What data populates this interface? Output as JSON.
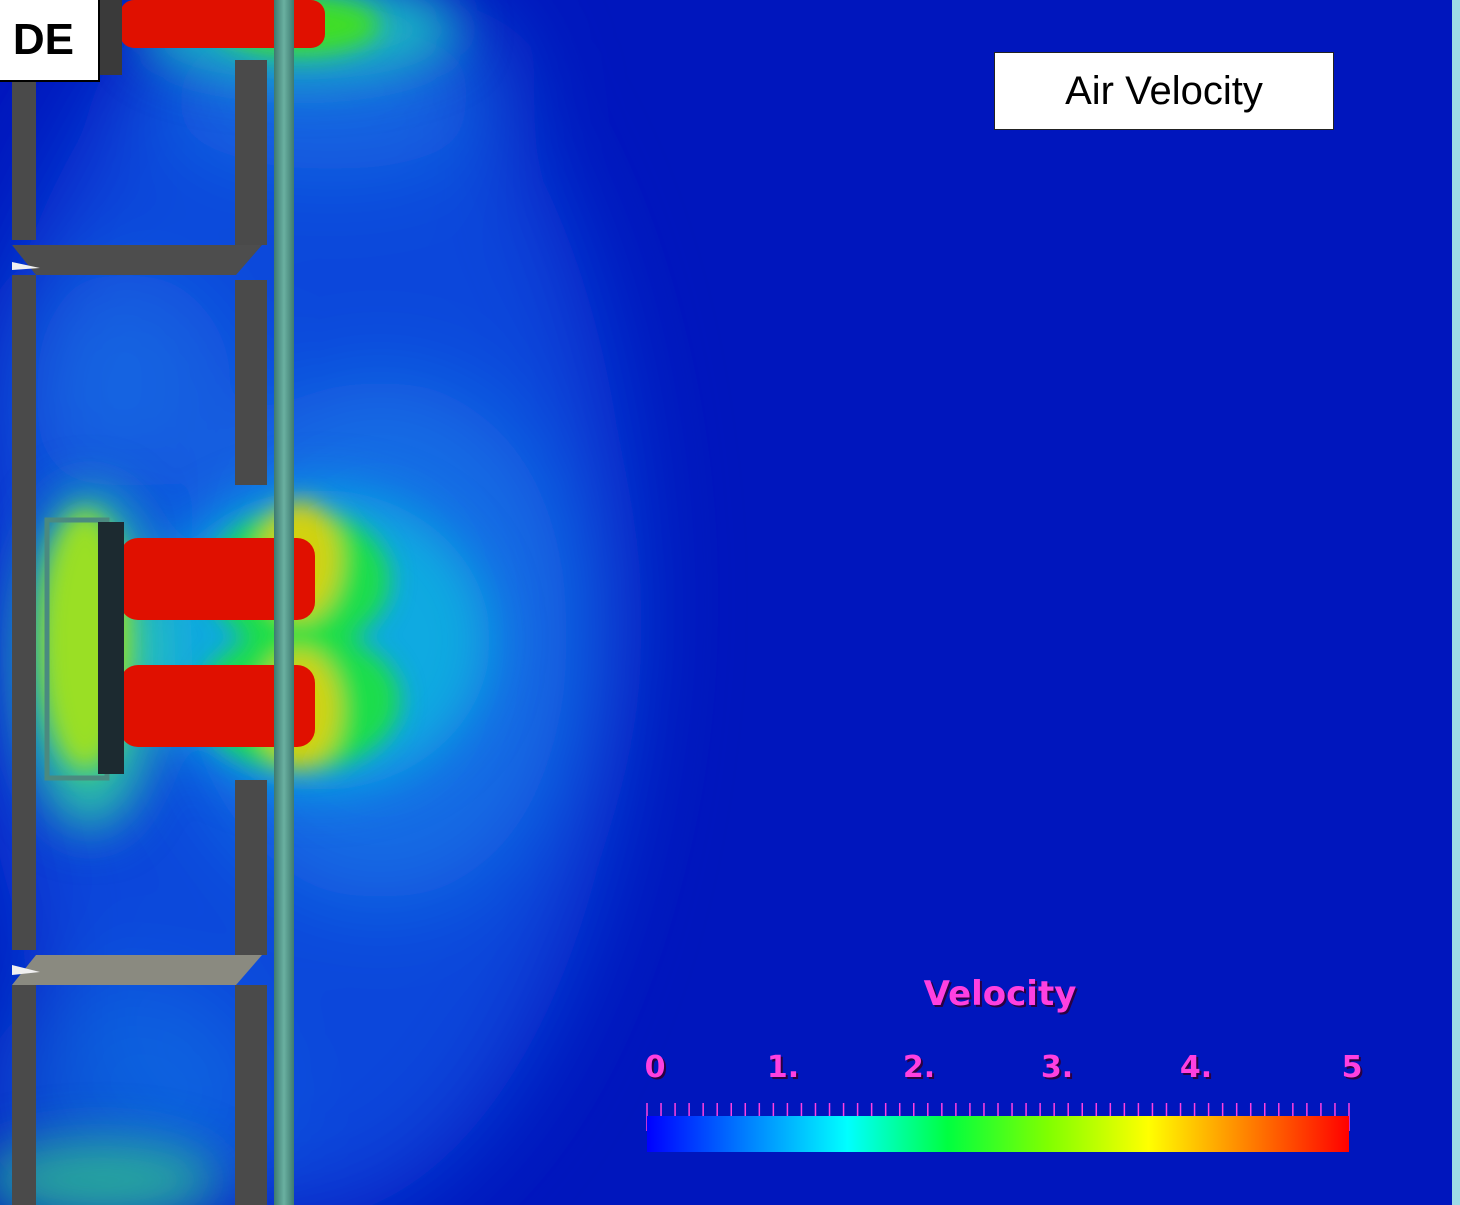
{
  "title": "Air Velocity",
  "corner_label": "DE",
  "legend": {
    "title": "Velocity",
    "tick_labels": [
      "0",
      "1.",
      "2.",
      "3.",
      "4.",
      "5"
    ],
    "min": 0,
    "max": 5,
    "colors": [
      "#0000ff",
      "#0080ff",
      "#00ffff",
      "#00ff40",
      "#80ff00",
      "#ffff00",
      "#ff8000",
      "#ff0000"
    ],
    "text_color": "#ff40e0"
  },
  "colors": {
    "background_field": "#0018c0",
    "wall": "#4a4a4a",
    "panel": "#5a9a8a"
  }
}
